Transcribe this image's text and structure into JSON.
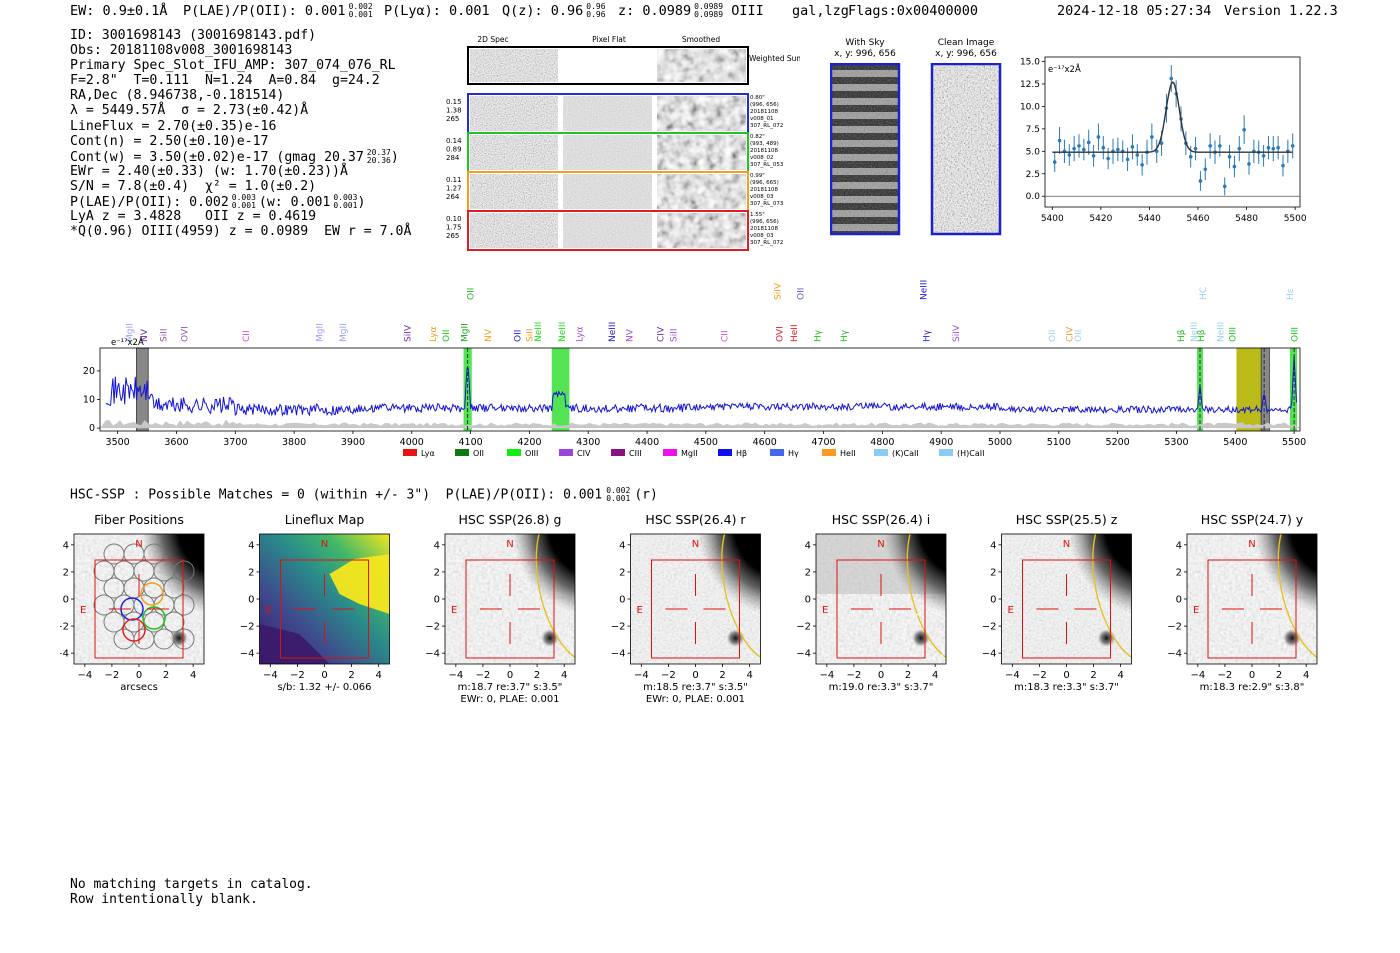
{
  "header": {
    "ew": "EW: 0.9±0.1Å",
    "plae_label": "P(LAE)/P(OII): 0.001",
    "plae_sup": "0.002",
    "plae_sub": "0.001",
    "plya": "P(Lyα): 0.001",
    "qz_label": "Q(z): 0.96",
    "qz_sup": "0.96",
    "qz_sub": "0.96",
    "z_label": "z: 0.0989",
    "z_sup": "0.0989",
    "z_sub": "0.0989",
    "z_line": "OIII",
    "classes": "gal,lzg",
    "flags": "Flags:0x00400000",
    "datetime": "2024-12-18 05:27:34",
    "version": "Version 1.22.3"
  },
  "info": {
    "id": "ID: 3001698143 (3001698143.pdf)",
    "obs": "Obs: 20181108v008_3001698143",
    "primary": "Primary Spec_Slot_IFU_AMP: 307_074_076_RL",
    "fparams": "F=2.8\"  T=0.111  N=1.24  A=0.84  g=24.2",
    "radec": "RA,Dec (8.946738,-0.181514)",
    "lambda": "λ = 5449.57Å  σ = 2.73(±0.42)Å",
    "lineflux": "LineFlux = 2.70(±0.35)e-16",
    "contn": "Cont(n) = 2.50(±0.10)e-17",
    "contw": "Cont(w) = 3.50(±0.02)e-17 (gmag 20.37",
    "contw_sup": "20.37",
    "contw_sub": "20.36",
    "contw_end": ")",
    "ewr": "EWr = 2.40(±0.33) (w: 1.70(±0.23))Å",
    "sn": "S/N = 7.8(±0.4)  χ² = 1.0(±0.2)",
    "plae": "P(LAE)/P(OII): 0.002",
    "plae_sup": "0.003",
    "plae_sub": "0.001",
    "plae_w": "(w: 0.001",
    "plae_w_sup": "0.003",
    "plae_w_sub": "0.001",
    "plae_w_end": ")",
    "lya": "LyA z = 3.4828   OII z = 0.4619",
    "q": "*Q(0.96) OIII(4959) z = 0.0989  EW r = 7.0Å"
  },
  "cutouts": {
    "headers": [
      "2D Spec",
      "Pixel Flat",
      "Smoothed"
    ],
    "weighted": "Weighted Sum",
    "rows": [
      {
        "left": [
          "0.15",
          "1.38",
          "265"
        ],
        "right": [
          "0.80\"",
          "(996, 656)",
          "20181108",
          "v008_01",
          "307_RL_072"
        ],
        "color": "#1f2fd6"
      },
      {
        "left": [
          "0.14",
          "0.89",
          "284"
        ],
        "right": [
          "0.82\"",
          "(993, 489)",
          "20181108",
          "v008_02",
          "307_RL_053"
        ],
        "color": "#22c322"
      },
      {
        "left": [
          "0.11",
          "1.27",
          "264"
        ],
        "right": [
          "0.99\"",
          "(996, 665)",
          "20181108",
          "v008_03",
          "307_RL_073"
        ],
        "color": "#f2a020"
      },
      {
        "left": [
          "0.10",
          "1.75",
          "265"
        ],
        "right": [
          "1.55\"",
          "(996, 656)",
          "20181108",
          "v008_03",
          "307_RL_072"
        ],
        "color": "#e02020"
      }
    ]
  },
  "sky": {
    "with_sky": "With Sky",
    "with_sky_xy": "x, y: 996, 656",
    "clean": "Clean Image",
    "clean_xy": "x, y: 996, 656"
  },
  "zoom_chart": {
    "type": "line",
    "ylabel": "e⁻¹⁷x2Å",
    "xlim": [
      5397,
      5502
    ],
    "ylim": [
      -1.2,
      15.5
    ],
    "xticks": [
      5400,
      5420,
      5440,
      5460,
      5480,
      5500
    ],
    "yticks": [
      0.0,
      2.5,
      5.0,
      7.5,
      10.0,
      12.5,
      15.0
    ],
    "ytick_labels": [
      "0.0",
      "2.5",
      "5.0",
      "7.5",
      "10.0",
      "12.5",
      "15.0"
    ],
    "fit": {
      "continuum": 4.9,
      "center": 5449.6,
      "sigma": 2.73,
      "amp": 7.8
    },
    "data": [
      [
        5401,
        3.8,
        1.1
      ],
      [
        5403,
        6.2,
        1.5
      ],
      [
        5405,
        5.0,
        1.3
      ],
      [
        5407,
        4.6,
        1.2
      ],
      [
        5409,
        5.3,
        1.4
      ],
      [
        5411,
        5.6,
        1.3
      ],
      [
        5413,
        5.2,
        1.2
      ],
      [
        5415,
        6.0,
        1.4
      ],
      [
        5417,
        4.5,
        1.2
      ],
      [
        5419,
        6.6,
        1.5
      ],
      [
        5421,
        5.4,
        1.3
      ],
      [
        5423,
        4.2,
        1.2
      ],
      [
        5425,
        5.0,
        1.4
      ],
      [
        5427,
        5.2,
        1.3
      ],
      [
        5429,
        5.0,
        1.2
      ],
      [
        5431,
        4.1,
        1.3
      ],
      [
        5433,
        5.5,
        1.4
      ],
      [
        5435,
        4.6,
        1.2
      ],
      [
        5437,
        3.5,
        1.2
      ],
      [
        5439,
        4.9,
        1.4
      ],
      [
        5441,
        6.6,
        1.5
      ],
      [
        5443,
        5.0,
        1.3
      ],
      [
        5445,
        5.9,
        1.4
      ],
      [
        5447,
        9.8,
        1.6
      ],
      [
        5449,
        13.1,
        1.5
      ],
      [
        5451,
        11.4,
        1.5
      ],
      [
        5453,
        8.6,
        1.4
      ],
      [
        5455,
        5.9,
        1.3
      ],
      [
        5457,
        4.4,
        1.2
      ],
      [
        5459,
        5.3,
        1.3
      ],
      [
        5461,
        1.7,
        1.1
      ],
      [
        5463,
        3.0,
        1.2
      ],
      [
        5465,
        5.6,
        1.4
      ],
      [
        5467,
        4.9,
        1.3
      ],
      [
        5469,
        5.6,
        1.2
      ],
      [
        5471,
        1.1,
        1.0
      ],
      [
        5473,
        4.4,
        1.3
      ],
      [
        5475,
        3.3,
        1.2
      ],
      [
        5477,
        5.3,
        1.4
      ],
      [
        5479,
        7.4,
        1.6
      ],
      [
        5481,
        3.6,
        1.2
      ],
      [
        5483,
        5.0,
        1.3
      ],
      [
        5485,
        4.9,
        1.3
      ],
      [
        5487,
        4.5,
        1.2
      ],
      [
        5489,
        5.4,
        1.3
      ],
      [
        5491,
        5.3,
        1.4
      ],
      [
        5493,
        5.4,
        1.3
      ],
      [
        5495,
        3.4,
        1.2
      ],
      [
        5497,
        5.0,
        1.3
      ],
      [
        5499,
        5.6,
        1.4
      ]
    ]
  },
  "full_chart": {
    "type": "line",
    "ylabel": "e⁻¹⁷x2Å",
    "xlim": [
      3470,
      5510
    ],
    "ylim": [
      -1,
      28
    ],
    "xticks": [
      3500,
      3600,
      3700,
      3800,
      3900,
      4000,
      4100,
      4200,
      4300,
      4400,
      4500,
      4600,
      4700,
      4800,
      4900,
      5000,
      5100,
      5200,
      5300,
      5400,
      5500
    ],
    "yticks": [
      0,
      10,
      20
    ],
    "highlights": [
      {
        "x0": 4088,
        "x1": 4102,
        "color": "#40e040"
      },
      {
        "x0": 4238,
        "x1": 4268,
        "color": "#40e040"
      },
      {
        "x0": 5335,
        "x1": 5345,
        "color": "#40e040"
      },
      {
        "x0": 5402,
        "x1": 5448,
        "color": "#b3b300"
      },
      {
        "x0": 5493,
        "x1": 5505,
        "color": "#40e040"
      }
    ],
    "grey_bands": [
      {
        "x0": 3532,
        "x1": 3552
      },
      {
        "x0": 5444,
        "x1": 5458
      }
    ],
    "line_labels": [
      {
        "w": 3520,
        "t": "MgII",
        "c": "#a0a0ff",
        "row": 2
      },
      {
        "w": 3545,
        "t": "NV",
        "c": "#6a2fa0",
        "row": 2
      },
      {
        "w": 3578,
        "t": "SiII",
        "c": "#8a5ab0",
        "row": 2
      },
      {
        "w": 3614,
        "t": "OVI",
        "c": "#8a5ab0",
        "row": 2
      },
      {
        "w": 3718,
        "t": "CII",
        "c": "#d050d0",
        "row": 2
      },
      {
        "w": 3843,
        "t": "MgII",
        "c": "#a0a0ff",
        "row": 2
      },
      {
        "w": 3883,
        "t": "MgII",
        "c": "#a0a0ff",
        "row": 2
      },
      {
        "w": 3993,
        "t": "SiIV",
        "c": "#6a2fa0",
        "row": 2
      },
      {
        "w": 4036,
        "t": "Lyα",
        "c": "#f0a020",
        "row": 2
      },
      {
        "w": 4058,
        "t": "OII",
        "c": "#20c020",
        "row": 2
      },
      {
        "w": 4090,
        "t": "MgII",
        "c": "#20a020",
        "row": 2
      },
      {
        "w": 4100,
        "t": "OII",
        "c": "#20c020",
        "row": 1
      },
      {
        "w": 4130,
        "t": "NV",
        "c": "#f0a020",
        "row": 2
      },
      {
        "w": 4180,
        "t": "OII",
        "c": "#2020e0",
        "row": 2
      },
      {
        "w": 4200,
        "t": "SiII",
        "c": "#f0a020",
        "row": 2
      },
      {
        "w": 4215,
        "t": "NeIII",
        "c": "#20e020",
        "row": 2
      },
      {
        "w": 4255,
        "t": "NeIII",
        "c": "#20e020",
        "row": 2
      },
      {
        "w": 4285,
        "t": "Lyα",
        "c": "#a050d0",
        "row": 2
      },
      {
        "w": 4340,
        "t": "NeIII",
        "c": "#2020e0",
        "row": 2
      },
      {
        "w": 4370,
        "t": "NV",
        "c": "#a050d0",
        "row": 2
      },
      {
        "w": 4423,
        "t": "CIV",
        "c": "#6a2fa0",
        "row": 2
      },
      {
        "w": 4445,
        "t": "SiII",
        "c": "#a050d0",
        "row": 2
      },
      {
        "w": 4532,
        "t": "CII",
        "c": "#d050d0",
        "row": 2
      },
      {
        "w": 4622,
        "t": "SiIV",
        "c": "#f0a020",
        "row": 1
      },
      {
        "w": 4661,
        "t": "OII",
        "c": "#6060d0",
        "row": 1
      },
      {
        "w": 4625,
        "t": "OVI",
        "c": "#e02020",
        "row": 2
      },
      {
        "w": 4650,
        "t": "HeII",
        "c": "#e02020",
        "row": 2
      },
      {
        "w": 4690,
        "t": "Hγ",
        "c": "#20c020",
        "row": 2
      },
      {
        "w": 4735,
        "t": "Hγ",
        "c": "#20c020",
        "row": 2
      },
      {
        "w": 4870,
        "t": "NeIII",
        "c": "#2020e0",
        "row": 1
      },
      {
        "w": 4875,
        "t": "Hγ",
        "c": "#2020e0",
        "row": 2
      },
      {
        "w": 4925,
        "t": "SiIV",
        "c": "#a050d0",
        "row": 2
      },
      {
        "w": 5088,
        "t": "OII",
        "c": "#9ad0f0",
        "row": 2
      },
      {
        "w": 5118,
        "t": "CIV",
        "c": "#f0a020",
        "row": 2
      },
      {
        "w": 5133,
        "t": "OII",
        "c": "#9ad0f0",
        "row": 2
      },
      {
        "w": 5308,
        "t": "Hβ",
        "c": "#20c020",
        "row": 2
      },
      {
        "w": 5330,
        "t": "NeIII",
        "c": "#9ad0f0",
        "row": 2
      },
      {
        "w": 5342,
        "t": "Hβ",
        "c": "#20c020",
        "row": 2
      },
      {
        "w": 5345,
        "t": "HC",
        "c": "#9ad0f0",
        "row": 1
      },
      {
        "w": 5375,
        "t": "NeIII",
        "c": "#9ad0f0",
        "row": 2
      },
      {
        "w": 5395,
        "t": "OIII",
        "c": "#20c020",
        "row": 2
      },
      {
        "w": 5493,
        "t": "Hε",
        "c": "#9ad0f0",
        "row": 1
      },
      {
        "w": 5501,
        "t": "OIII",
        "c": "#20c020",
        "row": 2
      }
    ],
    "legend": [
      {
        "t": "Lyα",
        "c": "#ee1111"
      },
      {
        "t": "OII",
        "c": "#117711"
      },
      {
        "t": "OIII",
        "c": "#11ee11"
      },
      {
        "t": "CIV",
        "c": "#9944dd"
      },
      {
        "t": "CIII",
        "c": "#881188"
      },
      {
        "t": "MgII",
        "c": "#ee11ee"
      },
      {
        "t": "Hβ",
        "c": "#1111ee"
      },
      {
        "t": "Hγ",
        "c": "#4466ee"
      },
      {
        "t": "HeII",
        "c": "#ff9922"
      },
      {
        "t": "(K)CaII",
        "c": "#88ccee"
      },
      {
        "t": "(H)CaII",
        "c": "#88ccee"
      }
    ]
  },
  "hsc": {
    "summary": "HSC-SSP : Possible Matches = 0 (within +/- 3\")  P(LAE)/P(OII): 0.001",
    "summary_sup": "0.002",
    "summary_sub": "0.001",
    "summary_end": "(r)",
    "ticks": [
      "−4",
      "−2",
      "0",
      "2",
      "4"
    ],
    "north": "N",
    "east": "E",
    "panels": [
      {
        "title": "Fiber Positions",
        "cap1": "arcsecs",
        "cap2": ""
      },
      {
        "title": "Lineflux Map",
        "cap1": "s/b: 1.32 +/- 0.066",
        "cap2": ""
      },
      {
        "title": "HSC SSP(26.8) g",
        "cap1": "m:18.7  re:3.7\"  s:3.5\"",
        "cap2": "EWr: 0, PLAE: 0.001"
      },
      {
        "title": "HSC SSP(26.4) r",
        "cap1": "m:18.5  re:3.7\"  s:3.5\"",
        "cap2": "EWr: 0, PLAE: 0.001"
      },
      {
        "title": "HSC SSP(26.4) i",
        "cap1": "m:19.0  re:3.3\"  s:3.7\"",
        "cap2": ""
      },
      {
        "title": "HSC SSP(25.5) z",
        "cap1": "m:18.3  re:3.3\"  s:3.7\"",
        "cap2": ""
      },
      {
        "title": "HSC SSP(24.7) y",
        "cap1": "m:18.3  re:2.9\"  s:3.8\"",
        "cap2": ""
      }
    ]
  },
  "footer": {
    "line1": "No matching targets in catalog.",
    "line2": "Row intentionally blank."
  }
}
